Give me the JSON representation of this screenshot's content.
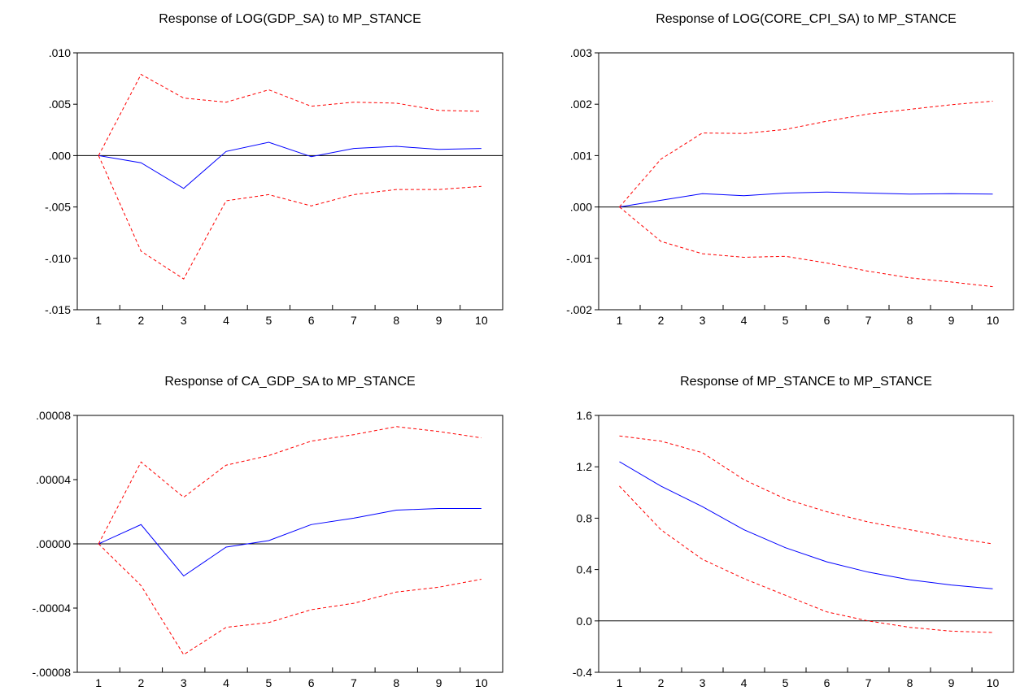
{
  "chart_data": [
    {
      "type": "line",
      "title": "Response of LOG(GDP_SA) to MP_STANCE",
      "x": [
        1,
        2,
        3,
        4,
        5,
        6,
        7,
        8,
        9,
        10
      ],
      "ylim": [
        -0.015,
        0.01
      ],
      "yticks": [
        0.01,
        0.005,
        0.0,
        -0.005,
        -0.01,
        -0.015
      ],
      "ytick_labels": [
        ".010",
        ".005",
        ".000",
        "-.005",
        "-.010",
        "-.015"
      ],
      "series": [
        {
          "color": "#0000ff",
          "dash": false,
          "values": [
            0.0,
            -0.0007,
            -0.0032,
            0.0004,
            0.0013,
            -0.0001,
            0.0007,
            0.0009,
            0.0006,
            0.0007
          ]
        },
        {
          "color": "#ff0000",
          "dash": true,
          "values": [
            0.0,
            0.0079,
            0.0056,
            0.0052,
            0.0064,
            0.0048,
            0.0052,
            0.0051,
            0.0044,
            0.0043
          ]
        },
        {
          "color": "#ff0000",
          "dash": true,
          "values": [
            0.0,
            -0.0093,
            -0.012,
            -0.0044,
            -0.0038,
            -0.0049,
            -0.0038,
            -0.0033,
            -0.0033,
            -0.003
          ]
        }
      ]
    },
    {
      "type": "line",
      "title": "Response of LOG(CORE_CPI_SA) to MP_STANCE",
      "x": [
        1,
        2,
        3,
        4,
        5,
        6,
        7,
        8,
        9,
        10
      ],
      "ylim": [
        -0.002,
        0.003
      ],
      "yticks": [
        0.003,
        0.002,
        0.001,
        0.0,
        -0.001,
        -0.002
      ],
      "ytick_labels": [
        ".003",
        ".002",
        ".001",
        ".000",
        "-.001",
        "-.002"
      ],
      "series": [
        {
          "color": "#0000ff",
          "dash": false,
          "values": [
            0.0,
            0.00013,
            0.00026,
            0.00022,
            0.00027,
            0.00029,
            0.00027,
            0.00025,
            0.00026,
            0.00025
          ]
        },
        {
          "color": "#ff0000",
          "dash": true,
          "values": [
            0.0,
            0.00093,
            0.00144,
            0.00143,
            0.00151,
            0.00167,
            0.00181,
            0.0019,
            0.00199,
            0.00206
          ]
        },
        {
          "color": "#ff0000",
          "dash": true,
          "values": [
            0.0,
            -0.00067,
            -0.00091,
            -0.00098,
            -0.00096,
            -0.00109,
            -0.00125,
            -0.00138,
            -0.00146,
            -0.00155
          ]
        }
      ]
    },
    {
      "type": "line",
      "title": "Response of CA_GDP_SA to MP_STANCE",
      "x": [
        1,
        2,
        3,
        4,
        5,
        6,
        7,
        8,
        9,
        10
      ],
      "ylim": [
        -8e-05,
        8e-05
      ],
      "yticks": [
        8e-05,
        4e-05,
        0.0,
        -4e-05,
        -8e-05
      ],
      "ytick_labels": [
        ".00008",
        ".00004",
        ".00000",
        "-.00004",
        "-.00008"
      ],
      "series": [
        {
          "color": "#0000ff",
          "dash": false,
          "values": [
            0.0,
            1.2e-05,
            -2e-05,
            -2e-06,
            2e-06,
            1.2e-05,
            1.6e-05,
            2.1e-05,
            2.2e-05,
            2.2e-05
          ]
        },
        {
          "color": "#ff0000",
          "dash": true,
          "values": [
            0.0,
            5.1e-05,
            2.9e-05,
            4.9e-05,
            5.5e-05,
            6.4e-05,
            6.8e-05,
            7.3e-05,
            7e-05,
            6.6e-05
          ]
        },
        {
          "color": "#ff0000",
          "dash": true,
          "values": [
            0.0,
            -2.6e-05,
            -6.9e-05,
            -5.2e-05,
            -4.9e-05,
            -4.1e-05,
            -3.7e-05,
            -3e-05,
            -2.7e-05,
            -2.2e-05
          ]
        }
      ]
    },
    {
      "type": "line",
      "title": "Response of MP_STANCE to MP_STANCE",
      "x": [
        1,
        2,
        3,
        4,
        5,
        6,
        7,
        8,
        9,
        10
      ],
      "ylim": [
        -0.4,
        1.6
      ],
      "yticks": [
        1.6,
        1.2,
        0.8,
        0.4,
        0.0,
        -0.4
      ],
      "ytick_labels": [
        "1.6",
        "1.2",
        "0.8",
        "0.4",
        "0.0",
        "-0.4"
      ],
      "series": [
        {
          "color": "#0000ff",
          "dash": false,
          "values": [
            1.24,
            1.05,
            0.89,
            0.71,
            0.57,
            0.46,
            0.38,
            0.32,
            0.28,
            0.25
          ]
        },
        {
          "color": "#ff0000",
          "dash": true,
          "values": [
            1.44,
            1.4,
            1.31,
            1.1,
            0.95,
            0.85,
            0.77,
            0.71,
            0.65,
            0.6
          ]
        },
        {
          "color": "#ff0000",
          "dash": true,
          "values": [
            1.05,
            0.71,
            0.48,
            0.33,
            0.2,
            0.07,
            0.0,
            -0.05,
            -0.08,
            -0.09
          ]
        }
      ]
    }
  ]
}
